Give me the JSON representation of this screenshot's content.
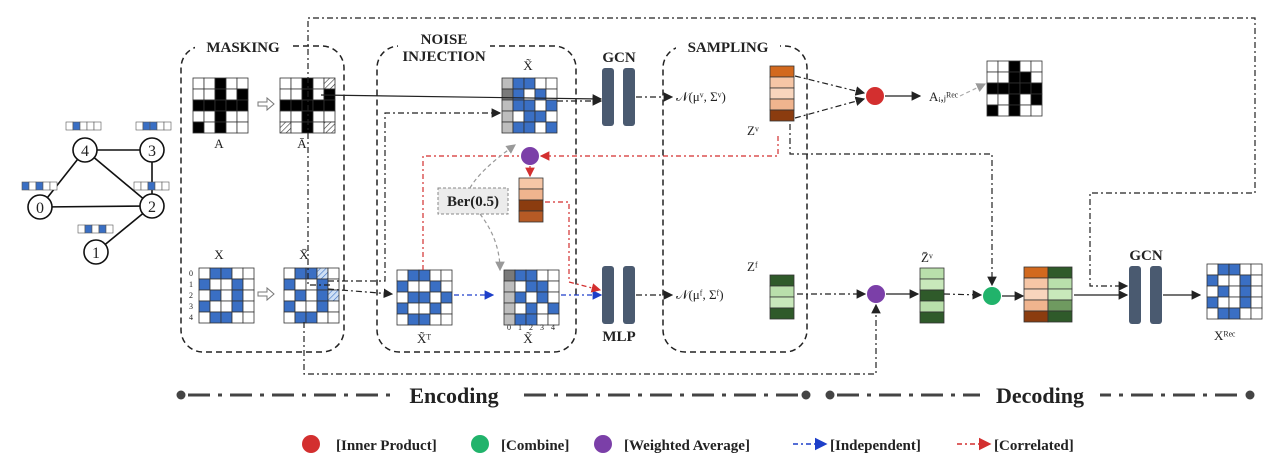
{
  "sections": {
    "masking": "MASKING",
    "noise_line1": "NOISE",
    "noise_line2": "INJECTION",
    "sampling": "SAMPLING"
  },
  "blocks": {
    "gcn_top": "GCN",
    "mlp": "MLP",
    "gcn_right": "GCN"
  },
  "labels": {
    "A": "A",
    "A_bar": "Ā",
    "X": "X",
    "X_bar": "X̄",
    "X_tilde_top": "X̃",
    "X_tilde_T": "X̃ᵀ",
    "X_tilde_bottom": "X̃",
    "ber": "Ber(0.5)",
    "normal_v": "𝒩(μᵛ, Σᵛ)",
    "normal_f": "𝒩(μᶠ, Σᶠ)",
    "Z_v": "Zᵛ",
    "Z_f": "Zᶠ",
    "Z_bar_v": "Z̄ᵛ",
    "A_rec": "Aᵢ,ⱼᴿᵉᶜ",
    "X_rec": "Xᴿᵉᶜ"
  },
  "graph_nodes": [
    "0",
    "1",
    "2",
    "3",
    "4"
  ],
  "row_indices": [
    "0",
    "1",
    "2",
    "3",
    "4"
  ],
  "col_indices": [
    "0",
    "1",
    "2",
    "3",
    "4"
  ],
  "phases": {
    "encoding": "Encoding",
    "decoding": "Decoding"
  },
  "legend": {
    "inner_product": "[Inner Product]",
    "combine": "[Combine]",
    "weighted_average": "[Weighted Average]",
    "independent": "[Independent]",
    "correlated": "[Correlated]"
  },
  "colors": {
    "red": "#d32f2f",
    "green": "#21b36b",
    "purple": "#7b3fa8",
    "blue": "#3a6fc4",
    "block": "#4a5a70",
    "orange_dark": "#8b3c0f",
    "green_dark": "#2f5a2a"
  }
}
